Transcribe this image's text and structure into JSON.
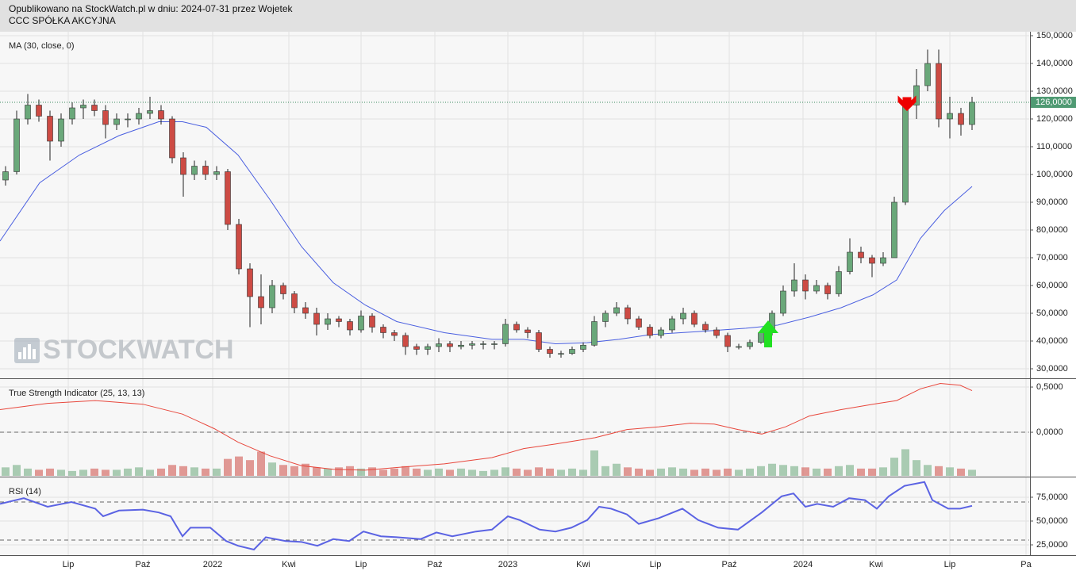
{
  "header": {
    "line1": "Opublikowano na StockWatch.pl w dniu: 2024-07-31 przez Wojetek",
    "line2": "CCC SPÓŁKA AKCYJNA"
  },
  "watermark": "STOCKWATCH",
  "x_axis": {
    "xlim": [
      0,
      1297
    ],
    "xticks": [
      {
        "value": 86,
        "label": "Lip"
      },
      {
        "value": 180,
        "label": "Paź"
      },
      {
        "value": 268,
        "label": "2022"
      },
      {
        "value": 364,
        "label": "Kwi"
      },
      {
        "value": 455,
        "label": "Lip"
      },
      {
        "value": 548,
        "label": "Paź"
      },
      {
        "value": 640,
        "label": "2023"
      },
      {
        "value": 735,
        "label": "Kwi"
      },
      {
        "value": 826,
        "label": "Lip"
      },
      {
        "value": 919,
        "label": "Paź"
      },
      {
        "value": 1012,
        "label": "2024"
      },
      {
        "value": 1104,
        "label": "Kwi"
      },
      {
        "value": 1197,
        "label": "Lip"
      },
      {
        "value": 1293,
        "label": "Pa"
      }
    ]
  },
  "chart_data": [
    {
      "type": "candlestick",
      "title": "MA (30, close, 0)",
      "x": [
        7,
        21,
        35,
        49,
        63,
        77,
        91,
        105,
        119,
        133,
        147,
        161,
        175,
        189,
        203,
        217,
        231,
        245,
        259,
        273,
        287,
        301,
        315,
        329,
        343,
        357,
        371,
        385,
        399,
        413,
        427,
        441,
        455,
        469,
        483,
        497,
        511,
        525,
        539,
        553,
        567,
        581,
        595,
        609,
        623,
        637,
        651,
        665,
        679,
        693,
        707,
        721,
        735,
        749,
        763,
        777,
        791,
        805,
        819,
        833,
        847,
        861,
        875,
        889,
        903,
        917,
        931,
        945,
        959,
        973,
        987,
        1001,
        1015,
        1029,
        1043,
        1057,
        1071,
        1085,
        1099,
        1113,
        1127,
        1141,
        1155,
        1169,
        1183,
        1197,
        1211,
        1225
      ],
      "open": [
        98,
        101,
        120,
        125,
        121,
        112,
        120,
        124,
        125,
        123,
        118,
        120,
        120,
        122,
        123,
        120,
        106,
        100,
        103,
        100,
        101,
        82,
        66,
        56,
        52,
        60,
        57,
        52,
        50,
        46,
        48,
        47,
        44,
        49,
        45,
        43,
        42,
        38,
        37,
        38,
        39,
        38,
        38.5,
        39,
        39,
        39,
        46,
        44,
        43,
        37,
        35.5,
        35.5,
        37,
        38.5,
        47,
        50,
        52,
        48,
        45,
        42,
        44,
        48,
        50,
        46,
        44,
        42,
        38,
        38,
        39.5,
        43,
        50,
        58,
        62,
        58,
        60,
        57,
        65,
        72,
        70,
        68,
        70,
        90,
        125,
        132,
        140,
        120,
        122,
        118
      ],
      "high": [
        103,
        123,
        129,
        127,
        123,
        122,
        126,
        127,
        127,
        125,
        122,
        122,
        124,
        128,
        125,
        121,
        108,
        105,
        105,
        103,
        102,
        84,
        68,
        64,
        62,
        61,
        58,
        54,
        52,
        50,
        49,
        48,
        51,
        50,
        46,
        44,
        43,
        39,
        39,
        41,
        40,
        40,
        40,
        40,
        40,
        48,
        47,
        45,
        44,
        38,
        36.5,
        38,
        39.5,
        49,
        51,
        54,
        53,
        49,
        46,
        45,
        49,
        52,
        51,
        47,
        45,
        43,
        39,
        40.5,
        44,
        51,
        60,
        68,
        64,
        62,
        61,
        67,
        77,
        74,
        71,
        72,
        92,
        127,
        138,
        145,
        145,
        128,
        124,
        128
      ],
      "low": [
        96,
        100,
        118,
        119,
        105,
        110,
        118,
        120,
        121,
        113,
        116,
        117,
        118,
        120,
        118,
        104,
        92,
        98,
        98,
        98,
        80,
        64,
        45,
        46,
        50,
        55,
        50,
        48,
        42,
        44,
        45,
        42,
        43,
        43,
        41,
        40,
        35,
        35,
        35,
        36,
        36,
        37,
        37,
        37,
        37,
        38,
        43,
        41,
        36,
        34,
        34,
        35,
        36,
        38,
        45,
        49,
        46,
        44,
        41,
        41,
        43,
        46,
        45,
        43,
        41,
        36,
        37,
        37,
        39,
        42,
        49,
        56,
        55,
        57,
        55,
        56,
        64,
        68,
        63,
        67,
        70,
        89,
        120,
        130,
        117,
        113,
        114,
        116
      ],
      "close": [
        101,
        120,
        125,
        121,
        112,
        120,
        124,
        125,
        123,
        118,
        120,
        120,
        122,
        123,
        120,
        106,
        100,
        103,
        100,
        101,
        82,
        66,
        56,
        52,
        60,
        57,
        52,
        50,
        46,
        48,
        47,
        44,
        49,
        45,
        43,
        42,
        38,
        37,
        38,
        39,
        38,
        38.5,
        39,
        39,
        39,
        46,
        44,
        43,
        37,
        35.5,
        35.5,
        37,
        38.5,
        47,
        50,
        52,
        48,
        45,
        42,
        44,
        48,
        50,
        46,
        44,
        42,
        38,
        38,
        39.5,
        43,
        50,
        58,
        62,
        58,
        60,
        57,
        65,
        72,
        70,
        68,
        70,
        90,
        125,
        132,
        140,
        120,
        122,
        118,
        126
      ],
      "up_color": "#6aa87a",
      "down_color": "#cd4b44",
      "ma": {
        "color": "#4a5fe0",
        "x": [
          0,
          50,
          100,
          150,
          200,
          230,
          260,
          300,
          340,
          380,
          420,
          460,
          500,
          560,
          620,
          660,
          700,
          740,
          780,
          820,
          880,
          940,
          980,
          1020,
          1060,
          1100,
          1130,
          1160,
          1190,
          1225
        ],
        "values": [
          76,
          97,
          107,
          114,
          119,
          119,
          117,
          107,
          91,
          74,
          61,
          53,
          47,
          43,
          40.6,
          40.6,
          39,
          39.4,
          40.6,
          42.3,
          43.4,
          44.6,
          45.7,
          48.6,
          52,
          56.6,
          62,
          77,
          87,
          95.7
        ]
      },
      "last_price": {
        "value": 126,
        "label": "126,0000"
      },
      "ylim": [
        26.57,
        151.43
      ],
      "yticks": [
        {
          "value": 30,
          "label": "30,0000"
        },
        {
          "value": 40,
          "label": "40,0000"
        },
        {
          "value": 50,
          "label": "50,0000"
        },
        {
          "value": 60,
          "label": "60,0000"
        },
        {
          "value": 70,
          "label": "70,0000"
        },
        {
          "value": 80,
          "label": "80,0000"
        },
        {
          "value": 90,
          "label": "90,0000"
        },
        {
          "value": 100,
          "label": "100,0000"
        },
        {
          "value": 110,
          "label": "110,0000"
        },
        {
          "value": 120,
          "label": "120,0000"
        },
        {
          "value": 130,
          "label": "130,0000"
        },
        {
          "value": 140,
          "label": "140,0000"
        },
        {
          "value": 150,
          "label": "150,0000"
        }
      ],
      "grid": true
    },
    {
      "type": "line",
      "title": "True Strength Indicator (25, 13, 13)",
      "x": [
        0,
        60,
        120,
        180,
        230,
        270,
        300,
        340,
        380,
        420,
        460,
        500,
        560,
        620,
        660,
        700,
        750,
        790,
        830,
        870,
        900,
        930,
        960,
        990,
        1020,
        1060,
        1100,
        1130,
        1160,
        1185,
        1210,
        1225
      ],
      "values": [
        0.25,
        0.32,
        0.35,
        0.31,
        0.2,
        0.04,
        -0.11,
        -0.26,
        -0.37,
        -0.41,
        -0.42,
        -0.39,
        -0.35,
        -0.28,
        -0.18,
        -0.13,
        -0.06,
        0.03,
        0.06,
        0.1,
        0.09,
        0.03,
        -0.02,
        0.06,
        0.18,
        0.25,
        0.31,
        0.35,
        0.48,
        0.54,
        0.52,
        0.46
      ],
      "color": "#e8473c",
      "levels": [
        0
      ],
      "volume": {
        "values": [
          14,
          18,
          12,
          10,
          12,
          10,
          8,
          10,
          12,
          10,
          10,
          12,
          14,
          10,
          12,
          18,
          16,
          14,
          12,
          12,
          28,
          32,
          26,
          40,
          22,
          18,
          16,
          20,
          14,
          12,
          14,
          16,
          12,
          14,
          10,
          12,
          16,
          12,
          10,
          12,
          10,
          12,
          10,
          8,
          10,
          14,
          12,
          10,
          14,
          12,
          10,
          12,
          10,
          42,
          16,
          20,
          14,
          12,
          10,
          12,
          14,
          12,
          10,
          12,
          10,
          12,
          10,
          12,
          16,
          20,
          18,
          16,
          14,
          12,
          12,
          16,
          18,
          12,
          12,
          14,
          30,
          44,
          26,
          18,
          16,
          14,
          12,
          10
        ],
        "ylim": [
          0,
          160
        ]
      },
      "ylim": [
        -0.482,
        0.588
      ],
      "yticks": [
        {
          "value": 0.5,
          "label": "0,5000"
        },
        {
          "value": 0,
          "label": "0,0000"
        }
      ],
      "grid": true
    },
    {
      "type": "line",
      "title": "RSI (14)",
      "x": [
        0,
        30,
        60,
        90,
        120,
        130,
        150,
        180,
        200,
        215,
        230,
        240,
        265,
        285,
        300,
        320,
        335,
        360,
        380,
        400,
        420,
        440,
        458,
        480,
        500,
        530,
        550,
        570,
        600,
        620,
        640,
        655,
        680,
        700,
        720,
        740,
        755,
        770,
        790,
        805,
        830,
        860,
        880,
        905,
        930,
        960,
        985,
        1000,
        1015,
        1030,
        1050,
        1070,
        1090,
        1105,
        1120,
        1140,
        1165,
        1175,
        1195,
        1210,
        1225
      ],
      "values": [
        68,
        74,
        65,
        70,
        63,
        55,
        61,
        62,
        59,
        55,
        34,
        43,
        43,
        29,
        24,
        20,
        33,
        29,
        28,
        24,
        31,
        29,
        39,
        34,
        33,
        31,
        38,
        34,
        39,
        41,
        55,
        51,
        41,
        39,
        43,
        51,
        65,
        63,
        57,
        47,
        53,
        63,
        51,
        43,
        41,
        59,
        76,
        79,
        65,
        68,
        65,
        74,
        72,
        63,
        76,
        87,
        91,
        72,
        63,
        63,
        66
      ],
      "color": "#5b63e3",
      "levels": [
        70,
        30
      ],
      "ylim": [
        14.2,
        95.8
      ],
      "yticks": [
        {
          "value": 75,
          "label": "75,0000"
        },
        {
          "value": 50,
          "label": "50,0000"
        },
        {
          "value": 25,
          "label": "25,0000"
        }
      ],
      "grid": true
    }
  ]
}
